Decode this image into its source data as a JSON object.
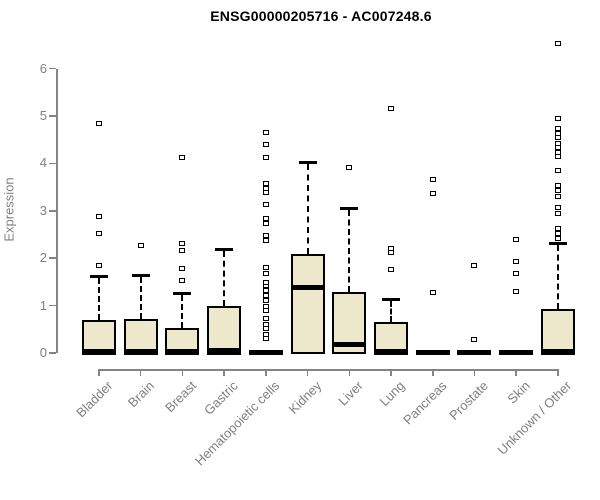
{
  "chart_data": {
    "type": "boxplot",
    "title": "ENSG00000205716 - AC007248.6",
    "ylabel": "Expression",
    "xlabel": "",
    "ylim": [
      0,
      6.6
    ],
    "yticks": [
      0,
      1,
      2,
      3,
      4,
      5,
      6
    ],
    "grid": false,
    "legend": "none",
    "categories": [
      "Bladder",
      "Brain",
      "Breast",
      "Gastric",
      "Hematopoietic cells",
      "Kidney",
      "Liver",
      "Lung",
      "Pancreas",
      "Prostate",
      "Skin",
      "Unknown / Other"
    ],
    "boxes": [
      {
        "category": "Bladder",
        "whisker_low": 0,
        "q1": 0,
        "median": 0.04,
        "q3": 0.7,
        "whisker_high": 1.63,
        "outliers": [
          1.84,
          2.52,
          2.88,
          4.84
        ]
      },
      {
        "category": "Brain",
        "whisker_low": 0,
        "q1": 0,
        "median": 0.04,
        "q3": 0.72,
        "whisker_high": 1.64,
        "outliers": [
          2.26
        ]
      },
      {
        "category": "Breast",
        "whisker_low": 0,
        "q1": 0,
        "median": 0.04,
        "q3": 0.53,
        "whisker_high": 1.27,
        "outliers": [
          1.54,
          1.78,
          2.16,
          2.3,
          4.12
        ]
      },
      {
        "category": "Gastric",
        "whisker_low": 0,
        "q1": 0,
        "median": 0.05,
        "q3": 0.99,
        "whisker_high": 2.2,
        "outliers": []
      },
      {
        "category": "Hematopoietic cells",
        "whisker_low": 0,
        "q1": 0,
        "median": 0.02,
        "q3": 0.05,
        "whisker_high": 0.05,
        "outliers": [
          0.3,
          0.4,
          0.51,
          0.61,
          0.72,
          0.89,
          0.99,
          1.1,
          1.21,
          1.31,
          1.42,
          1.48,
          1.67,
          1.8,
          2.37,
          2.47,
          2.73,
          2.83,
          3.13,
          3.38,
          3.47,
          3.57,
          4.12,
          4.4,
          4.65
        ]
      },
      {
        "category": "Kidney",
        "whisker_low": 0,
        "q1": 0.02,
        "median": 1.38,
        "q3": 2.08,
        "whisker_high": 4.02,
        "outliers": []
      },
      {
        "category": "Liver",
        "whisker_low": 0,
        "q1": 0.02,
        "median": 0.18,
        "q3": 1.28,
        "whisker_high": 3.05,
        "outliers": [
          3.92
        ]
      },
      {
        "category": "Lung",
        "whisker_low": 0,
        "q1": 0,
        "median": 0.04,
        "q3": 0.66,
        "whisker_high": 1.13,
        "outliers": [
          1.77,
          2.11,
          2.2,
          5.15
        ]
      },
      {
        "category": "Pancreas",
        "whisker_low": 0,
        "q1": 0,
        "median": 0.02,
        "q3": 0.05,
        "whisker_high": 0.05,
        "outliers": [
          1.27,
          3.36,
          3.65
        ]
      },
      {
        "category": "Prostate",
        "whisker_low": 0,
        "q1": 0,
        "median": 0.02,
        "q3": 0.05,
        "whisker_high": 0.05,
        "outliers": [
          0.29,
          1.84
        ]
      },
      {
        "category": "Skin",
        "whisker_low": 0,
        "q1": 0,
        "median": 0.02,
        "q3": 0.05,
        "whisker_high": 0.05,
        "outliers": [
          1.29,
          1.67,
          1.92,
          2.39
        ]
      },
      {
        "category": "Unknown / Other",
        "whisker_low": 0,
        "q1": 0,
        "median": 0.04,
        "q3": 0.93,
        "whisker_high": 2.33,
        "outliers": [
          2.42,
          2.52,
          2.62,
          2.95,
          3.06,
          3.3,
          3.43,
          3.53,
          3.85,
          4.14,
          4.22,
          4.33,
          4.42,
          4.54,
          4.64,
          4.74,
          4.94,
          6.54
        ]
      }
    ],
    "colors": {
      "box_fill": "#ede7cc",
      "box_stroke": "#000000",
      "axis": "#848484",
      "tick_text": "#7f7f7f",
      "title_text": "#000000"
    }
  }
}
